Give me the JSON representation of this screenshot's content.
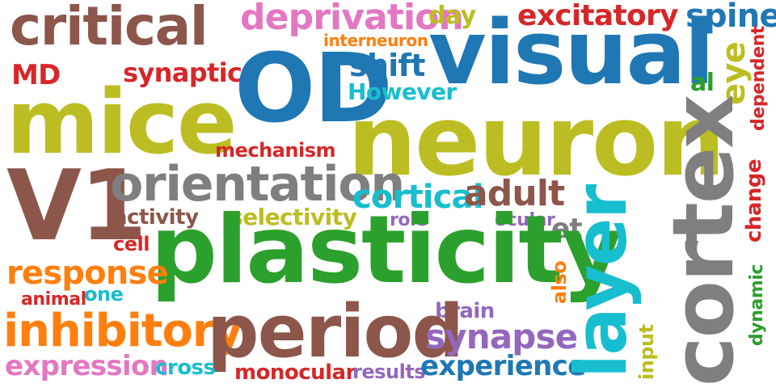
{
  "word_cloud": {
    "words": [
      {
        "text": "plasticity",
        "color": "#2ca02c"
      },
      {
        "text": "neuron",
        "color": "#bcbd22"
      },
      {
        "text": "visual",
        "color": "#1f77b4"
      },
      {
        "text": "OD",
        "color": "#1f77b4"
      },
      {
        "text": "V1",
        "color": "#8c564b"
      },
      {
        "text": "mice",
        "color": "#bcbd22"
      },
      {
        "text": "cortex",
        "color": "#7f7f7f"
      },
      {
        "text": "period",
        "color": "#8c564b"
      },
      {
        "text": "critical",
        "color": "#8c564b"
      },
      {
        "text": "layer",
        "color": "#17becf"
      },
      {
        "text": "orientation",
        "color": "#7f7f7f"
      },
      {
        "text": "inhibitory",
        "color": "#ff7f0e"
      },
      {
        "text": "deprivation",
        "color": "#e377c2"
      },
      {
        "text": "response",
        "color": "#ff7f0e"
      },
      {
        "text": "synapse",
        "color": "#9467bd"
      },
      {
        "text": "expression",
        "color": "#e377c2"
      },
      {
        "text": "experience",
        "color": "#1f77b4"
      },
      {
        "text": "excitatory",
        "color": "#d62728"
      },
      {
        "text": "spine",
        "color": "#1f77b4"
      },
      {
        "text": "cortical",
        "color": "#17becf"
      },
      {
        "text": "adult",
        "color": "#8c564b"
      },
      {
        "text": "shift",
        "color": "#1f77b4"
      },
      {
        "text": "synaptic",
        "color": "#d62728"
      },
      {
        "text": "However",
        "color": "#17becf"
      },
      {
        "text": "mechanism",
        "color": "#d62728"
      },
      {
        "text": "selectivity",
        "color": "#bcbd22"
      },
      {
        "text": "activity",
        "color": "#8c564b"
      },
      {
        "text": "day",
        "color": "#bcbd22"
      },
      {
        "text": "interneuron",
        "color": "#ff7f0e"
      },
      {
        "text": "MD",
        "color": "#d62728"
      },
      {
        "text": "eye",
        "color": "#bcbd22"
      },
      {
        "text": "al",
        "color": "#2ca02c"
      },
      {
        "text": "dependent",
        "color": "#d62728"
      },
      {
        "text": "change",
        "color": "#d62728"
      },
      {
        "text": "et",
        "color": "#7f7f7f"
      },
      {
        "text": "ocular",
        "color": "#9467bd"
      },
      {
        "text": "role",
        "color": "#9467bd"
      },
      {
        "text": "cell",
        "color": "#d62728"
      },
      {
        "text": "animal",
        "color": "#d62728"
      },
      {
        "text": "one",
        "color": "#17becf"
      },
      {
        "text": "also",
        "color": "#ff7f0e"
      },
      {
        "text": "brain",
        "color": "#9467bd"
      },
      {
        "text": "cross",
        "color": "#17becf"
      },
      {
        "text": "monocular",
        "color": "#d62728"
      },
      {
        "text": "results",
        "color": "#9467bd"
      },
      {
        "text": "input",
        "color": "#bcbd22"
      },
      {
        "text": "dynamic",
        "color": "#2ca02c"
      }
    ]
  }
}
